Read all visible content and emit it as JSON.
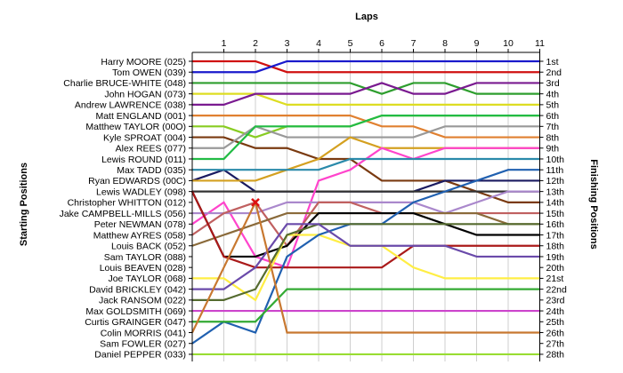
{
  "chart_data": {
    "type": "line",
    "title": "",
    "xlabel": "Laps",
    "ylabel_left": "Starting Positions",
    "ylabel_right": "Finishing Positions",
    "laps": [
      1,
      2,
      3,
      4,
      5,
      6,
      7,
      8,
      9,
      10,
      11
    ],
    "start_labels": [
      "Harry MOORE (025)",
      "Tom OWEN (039)",
      "Charlie BRUCE-WHITE (048)",
      "John HOGAN (073)",
      "Andrew LAWRENCE (038)",
      "Matt ENGLAND (001)",
      "Matthew TAYLOR (00O)",
      "Kyle SPROAT (004)",
      "Alex REES (077)",
      "Lewis ROUND (011)",
      "Max TADD (035)",
      "Ryan EDWARDS (00C)",
      "Lewis WADLEY (098)",
      "Christopher WHITTON (012)",
      "Jake CAMPBELL-MILLS (056)",
      "Peter NEWMAN (078)",
      "Matthew AYRES (058)",
      "Louis BACK (052)",
      "Sam TAYLOR (088)",
      "Louis BEAVEN (028)",
      "Joe TAYLOR (068)",
      "David BRICKLEY (042)",
      "Jack RANSOM (022)",
      "Max GOLDSMITH (069)",
      "Curtis GRAINGER (047)",
      "Colin MORRIS (041)",
      "Sam FOWLER (027)",
      "Daniel PEPPER (033)"
    ],
    "finish_labels": [
      "1st",
      "2nd",
      "3rd",
      "4th",
      "5th",
      "6th",
      "7th",
      "8th",
      "9th",
      "10th",
      "11th",
      "12th",
      "13th",
      "14th",
      "15th",
      "16th",
      "17th",
      "18th",
      "19th",
      "20th",
      "21st",
      "22nd",
      "23rd",
      "24th",
      "25th",
      "26th",
      "27th",
      "28th"
    ],
    "retirement_marker": {
      "lap": 2,
      "position": 14
    },
    "series": [
      {
        "color": "#d01010",
        "positions": [
          1,
          1,
          1,
          2,
          2,
          2,
          2,
          2,
          2,
          2,
          2,
          2
        ]
      },
      {
        "color": "#1a1acc",
        "positions": [
          2,
          2,
          2,
          1,
          1,
          1,
          1,
          1,
          1,
          1,
          1,
          1
        ]
      },
      {
        "color": "#2e9e2e",
        "positions": [
          3,
          3,
          3,
          3,
          3,
          3,
          4,
          3,
          3,
          4,
          4,
          4
        ]
      },
      {
        "color": "#dddd22",
        "positions": [
          4,
          4,
          4,
          5,
          5,
          5,
          5,
          5,
          5,
          5,
          5,
          5
        ]
      },
      {
        "color": "#7a1a90",
        "positions": [
          5,
          5,
          4,
          4,
          4,
          4,
          3,
          4,
          4,
          3,
          3,
          3
        ]
      },
      {
        "color": "#e08030",
        "positions": [
          6,
          6,
          6,
          6,
          6,
          6,
          7,
          7,
          8,
          8,
          8,
          8
        ]
      },
      {
        "color": "#88cc22",
        "positions": [
          7,
          7,
          8,
          7,
          7,
          7,
          6,
          6,
          6,
          6,
          6,
          6
        ]
      },
      {
        "color": "#7a3a10",
        "positions": [
          8,
          8,
          9,
          9,
          10,
          10,
          12,
          12,
          12,
          13,
          14,
          14
        ]
      },
      {
        "color": "#999999",
        "positions": [
          9,
          9,
          7,
          8,
          8,
          8,
          8,
          8,
          7,
          7,
          7,
          7
        ]
      },
      {
        "color": "#22bb44",
        "positions": [
          10,
          10,
          7,
          7,
          7,
          7,
          6,
          6,
          6,
          6,
          6,
          6
        ]
      },
      {
        "color": "#1a1a60",
        "positions": [
          12,
          11,
          13,
          13,
          13,
          13,
          13,
          13,
          12,
          12,
          12,
          12
        ]
      },
      {
        "color": "#d4a020",
        "positions": [
          12,
          12,
          12,
          11,
          10,
          8,
          9,
          9,
          9,
          9,
          9,
          9
        ]
      },
      {
        "color": "#333333",
        "positions": [
          13,
          13,
          13,
          13,
          13,
          13,
          13,
          13,
          13,
          13,
          13,
          13
        ]
      },
      {
        "color": "#ff44cc",
        "positions": [
          16,
          14,
          19,
          20,
          12,
          11,
          9,
          10,
          9,
          9,
          9,
          9
        ]
      },
      {
        "color": "#aa88cc",
        "positions": [
          15,
          15,
          15,
          14,
          14,
          14,
          14,
          14,
          15,
          14,
          13,
          13
        ]
      },
      {
        "color": "#c06060",
        "positions": [
          17,
          15,
          14,
          18,
          14,
          14,
          15,
          15,
          15,
          15,
          15,
          15
        ]
      },
      {
        "color": "#2a8aaa",
        "positions": [
          11,
          11,
          11,
          11,
          11,
          10,
          10,
          10,
          10,
          10,
          10,
          10
        ]
      },
      {
        "color": "#8a6a3a",
        "positions": [
          18,
          17,
          16,
          15,
          15,
          15,
          15,
          15,
          15,
          15,
          16,
          16
        ]
      },
      {
        "color": "#000000",
        "positions": [
          13,
          19,
          19,
          18,
          15,
          15,
          15,
          15,
          16,
          17,
          17,
          17
        ]
      },
      {
        "color": "#aa1a1a",
        "positions": [
          13,
          19,
          20,
          20,
          20,
          20,
          20,
          18,
          18,
          18,
          18,
          18
        ]
      },
      {
        "color": "#ffee44",
        "positions": [
          21,
          21,
          23,
          17,
          17,
          18,
          18,
          20,
          21,
          21,
          21,
          21
        ]
      },
      {
        "color": "#2060b0",
        "positions": [
          27,
          25,
          26,
          19,
          17,
          16,
          16,
          14,
          13,
          12,
          11,
          11
        ]
      },
      {
        "color": "#556b2f",
        "positions": [
          23,
          23,
          22,
          17,
          16,
          16,
          16,
          16,
          16,
          16,
          16,
          16
        ]
      },
      {
        "color": "#6a4aaa",
        "positions": [
          22,
          22,
          20,
          16,
          16,
          18,
          18,
          18,
          18,
          19,
          19,
          19
        ]
      },
      {
        "color": "#cc44cc",
        "positions": [
          24,
          24,
          24,
          24,
          24,
          24,
          24,
          24,
          24,
          24,
          24,
          24
        ]
      },
      {
        "color": "#33aa33",
        "positions": [
          25,
          25,
          25,
          22,
          22,
          22,
          22,
          22,
          22,
          22,
          22,
          22
        ]
      },
      {
        "color": "#c87830",
        "positions": [
          26,
          20,
          14,
          26,
          26,
          26,
          26,
          26,
          26,
          26,
          26,
          26
        ]
      },
      {
        "color": "#99dd33",
        "positions": [
          28,
          28,
          28,
          28,
          28,
          28,
          28,
          28,
          28,
          28,
          28,
          28
        ]
      }
    ]
  }
}
